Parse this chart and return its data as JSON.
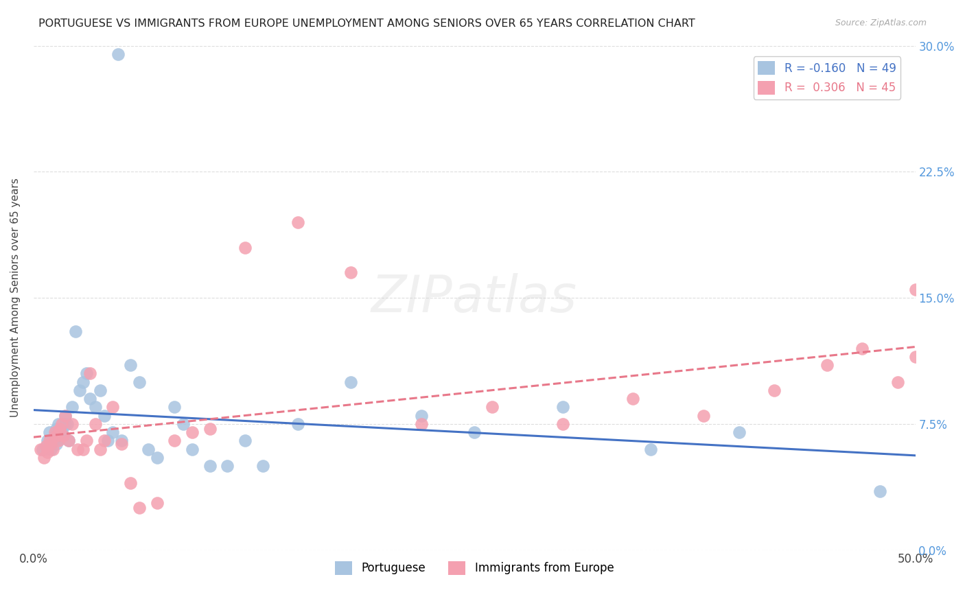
{
  "title": "PORTUGUESE VS IMMIGRANTS FROM EUROPE UNEMPLOYMENT AMONG SENIORS OVER 65 YEARS CORRELATION CHART",
  "source": "Source: ZipAtlas.com",
  "ylabel": "Unemployment Among Seniors over 65 years",
  "xlim": [
    0.0,
    0.5
  ],
  "ylim": [
    0.0,
    0.3
  ],
  "xticks": [
    0.0,
    0.1,
    0.2,
    0.3,
    0.4,
    0.5
  ],
  "xtick_labels": [
    "0.0%",
    "",
    "",
    "",
    "",
    "50.0%"
  ],
  "ytick_labels_right": [
    "0.0%",
    "7.5%",
    "15.0%",
    "22.5%",
    "30.0%"
  ],
  "yticks_right": [
    0.0,
    0.075,
    0.15,
    0.225,
    0.3
  ],
  "blue_color": "#a8c4e0",
  "pink_color": "#f4a0b0",
  "blue_line_color": "#4472c4",
  "pink_line_color": "#e8788a",
  "legend_R1": "-0.160",
  "legend_N1": "49",
  "legend_R2": "0.306",
  "legend_N2": "45",
  "blue_scatter_x": [
    0.005,
    0.008,
    0.009,
    0.01,
    0.011,
    0.012,
    0.013,
    0.013,
    0.014,
    0.015,
    0.016,
    0.016,
    0.017,
    0.018,
    0.018,
    0.019,
    0.02,
    0.022,
    0.024,
    0.026,
    0.028,
    0.03,
    0.032,
    0.035,
    0.038,
    0.04,
    0.042,
    0.045,
    0.048,
    0.05,
    0.055,
    0.06,
    0.065,
    0.07,
    0.08,
    0.085,
    0.09,
    0.1,
    0.11,
    0.12,
    0.13,
    0.15,
    0.18,
    0.22,
    0.25,
    0.3,
    0.35,
    0.4,
    0.48
  ],
  "blue_scatter_y": [
    0.06,
    0.065,
    0.07,
    0.06,
    0.065,
    0.068,
    0.063,
    0.072,
    0.075,
    0.066,
    0.07,
    0.072,
    0.068,
    0.075,
    0.08,
    0.075,
    0.065,
    0.085,
    0.13,
    0.095,
    0.1,
    0.105,
    0.09,
    0.085,
    0.095,
    0.08,
    0.065,
    0.07,
    0.295,
    0.065,
    0.11,
    0.1,
    0.06,
    0.055,
    0.085,
    0.075,
    0.06,
    0.05,
    0.05,
    0.065,
    0.05,
    0.075,
    0.1,
    0.08,
    0.07,
    0.085,
    0.06,
    0.07,
    0.035
  ],
  "pink_scatter_x": [
    0.004,
    0.006,
    0.007,
    0.008,
    0.009,
    0.01,
    0.011,
    0.012,
    0.013,
    0.014,
    0.015,
    0.016,
    0.017,
    0.018,
    0.02,
    0.022,
    0.025,
    0.028,
    0.03,
    0.032,
    0.035,
    0.038,
    0.04,
    0.045,
    0.05,
    0.055,
    0.06,
    0.07,
    0.08,
    0.09,
    0.1,
    0.12,
    0.15,
    0.18,
    0.22,
    0.26,
    0.3,
    0.34,
    0.38,
    0.42,
    0.45,
    0.47,
    0.49,
    0.5,
    0.5
  ],
  "pink_scatter_y": [
    0.06,
    0.055,
    0.062,
    0.058,
    0.065,
    0.063,
    0.06,
    0.07,
    0.068,
    0.065,
    0.072,
    0.075,
    0.068,
    0.08,
    0.065,
    0.075,
    0.06,
    0.06,
    0.065,
    0.105,
    0.075,
    0.06,
    0.065,
    0.085,
    0.063,
    0.04,
    0.025,
    0.028,
    0.065,
    0.07,
    0.072,
    0.18,
    0.195,
    0.165,
    0.075,
    0.085,
    0.075,
    0.09,
    0.08,
    0.095,
    0.11,
    0.12,
    0.1,
    0.115,
    0.155
  ],
  "background_color": "#ffffff",
  "grid_color": "#dddddd"
}
